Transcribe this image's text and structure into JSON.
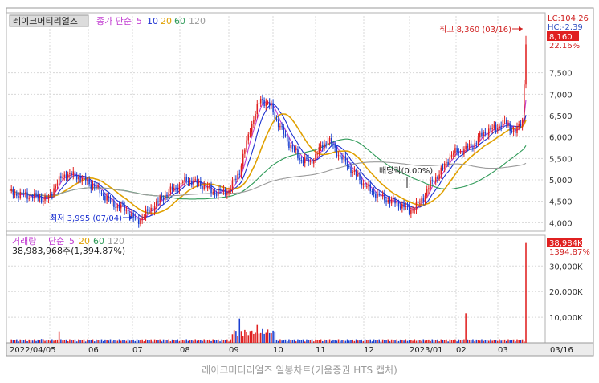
{
  "caption": "레이크머티리얼즈 일봉차트(키움증권 HTS 캡처)",
  "chart_data": [
    {
      "type": "candlestick",
      "title": "레이크머티리얼즈",
      "legend": {
        "label": "종가 단순",
        "periods": [
          "5",
          "10",
          "20",
          "60",
          "120"
        ],
        "colors": [
          "#c03ad0",
          "#1a2fd0",
          "#e0a000",
          "#2f9a58",
          "#9a9a9a"
        ]
      },
      "right_box": {
        "lc": "LC:104.26",
        "hc": "HC:-2.39",
        "price": "8,160",
        "pct": "22.16%"
      },
      "ylim": [
        3800,
        8900
      ],
      "yticks": [
        4000,
        4500,
        5000,
        5500,
        6000,
        6500,
        7000,
        7500
      ],
      "ytick_labels": [
        "4,000",
        "4,500",
        "5,000",
        "5,500",
        "6,000",
        "6,500",
        "7,000",
        "7,500"
      ],
      "annotations": {
        "high": "최고 8,360 (03/16)",
        "low": "최저 3,995 (07/04)",
        "dividend": "배당락(0.00%)"
      },
      "key_points": {
        "start_2022_04_05": 4700,
        "rally_top_early_may": 5150,
        "low_07_04": 3995,
        "sep_peak": 7300,
        "dec_bottom": 4250,
        "last_close_03_16": 8160,
        "high_03_16": 8360
      },
      "moving_averages_last": {
        "ma5": 6400,
        "ma10": 6300,
        "ma20": 6100,
        "ma60": 5500,
        "ma120": 5400
      }
    },
    {
      "type": "bar",
      "title": "거래량",
      "legend": {
        "label": "단순",
        "periods": [
          "5",
          "20",
          "60",
          "120"
        ]
      },
      "info": "38,983,968주(1,394.87%)",
      "right_box": {
        "value": "38,984K",
        "pct": "1394.87%"
      },
      "ylim": [
        0,
        42000
      ],
      "yticks": [
        10000,
        20000,
        30000
      ],
      "ytick_labels": [
        "10,000K",
        "20,000K",
        "30,000K"
      ],
      "last_volume_k": 38984,
      "notable_spikes_k": {
        "2022-04-late": 1500,
        "2022-05-mid": 4500,
        "2022-09-early": 9500,
        "2022-09-mid": 7000,
        "2023-02-early": 11500,
        "2023-03-16": 38984
      }
    }
  ],
  "x_axis": {
    "labels": [
      "2022/04/05",
      "06",
      "07",
      "08",
      "09",
      "10",
      "11",
      "12",
      "2023/01",
      "02",
      "03",
      "03/16"
    ]
  }
}
